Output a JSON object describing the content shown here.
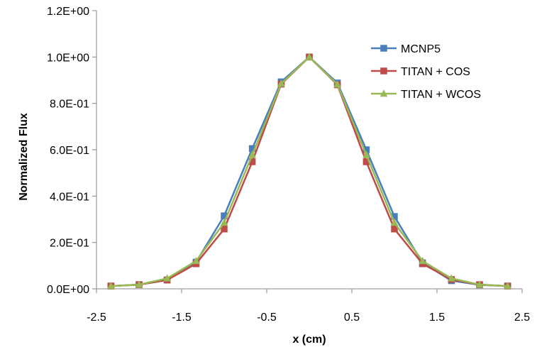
{
  "chart_data": {
    "type": "line",
    "title": "",
    "xlabel": "x (cm)",
    "ylabel": "Normalized Flux",
    "xlim": [
      -2.5,
      2.5
    ],
    "ylim": [
      0,
      1.2
    ],
    "x_ticks": [
      -2.5,
      -1.5,
      -0.5,
      0.5,
      1.5,
      2.5
    ],
    "x_tick_labels": [
      "-2.5",
      "-1.5",
      "-0.5",
      "0.5",
      "1.5",
      "2.5"
    ],
    "y_ticks": [
      0,
      0.2,
      0.4,
      0.6,
      0.8,
      1.0,
      1.2
    ],
    "y_tick_labels": [
      "0.0E+00",
      "2.0E-01",
      "4.0E-01",
      "6.0E-01",
      "8.0E-01",
      "1.0E+00",
      "1.2E+00"
    ],
    "grid": false,
    "legend_position": "right",
    "x": [
      -2.33,
      -2.0,
      -1.67,
      -1.33,
      -1.0,
      -0.67,
      -0.33,
      0.0,
      0.33,
      0.67,
      1.0,
      1.33,
      1.67,
      2.0,
      2.33
    ],
    "series": [
      {
        "name": "MCNP5",
        "color": "#4a7ebb",
        "marker": "square",
        "values": [
          0.012,
          0.018,
          0.038,
          0.115,
          0.315,
          0.605,
          0.893,
          1.0,
          0.888,
          0.6,
          0.312,
          0.112,
          0.035,
          0.017,
          0.012
        ]
      },
      {
        "name": "TITAN + COS",
        "color": "#be4b48",
        "marker": "square",
        "values": [
          0.012,
          0.018,
          0.038,
          0.108,
          0.258,
          0.548,
          0.883,
          1.0,
          0.88,
          0.548,
          0.258,
          0.108,
          0.04,
          0.018,
          0.012
        ]
      },
      {
        "name": "TITAN + WCOS",
        "color": "#98b954",
        "marker": "triangle",
        "values": [
          0.012,
          0.018,
          0.045,
          0.12,
          0.285,
          0.578,
          0.885,
          1.0,
          0.882,
          0.578,
          0.285,
          0.12,
          0.045,
          0.018,
          0.012
        ]
      }
    ]
  }
}
